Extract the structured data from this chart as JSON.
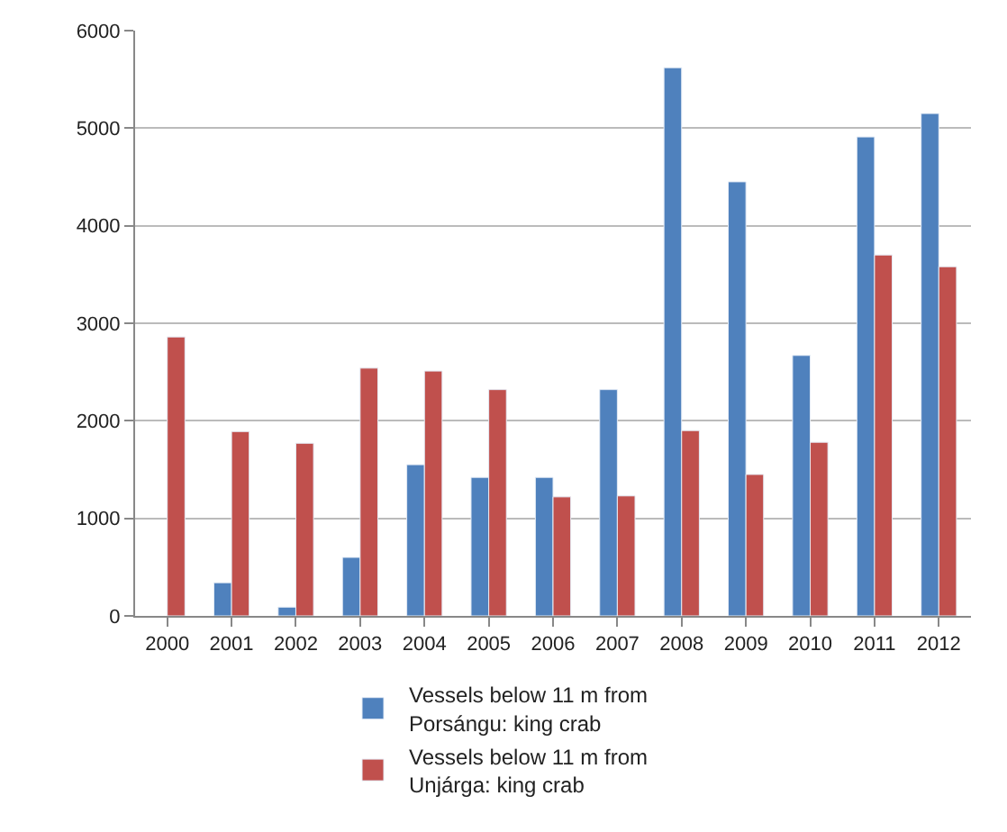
{
  "chart_data": {
    "type": "bar",
    "categories": [
      "2000",
      "2001",
      "2002",
      "2003",
      "2004",
      "2005",
      "2006",
      "2007",
      "2008",
      "2009",
      "2010",
      "2011",
      "2012"
    ],
    "series": [
      {
        "name": "Vessels below 11 m from Porsángu: king crab",
        "color": "#4f81bd",
        "values": [
          null,
          340,
          90,
          600,
          1550,
          1420,
          1420,
          2320,
          5620,
          4450,
          2670,
          4910,
          5150
        ]
      },
      {
        "name": "Vessels below 11 m from Unjárga: king crab",
        "color": "#c0504d",
        "values": [
          2860,
          1890,
          1770,
          2540,
          2510,
          2320,
          1220,
          1230,
          1900,
          1450,
          1780,
          3700,
          3580
        ]
      }
    ],
    "ylim": [
      0,
      6000
    ],
    "yticks": [
      0,
      1000,
      2000,
      3000,
      4000,
      5000,
      6000
    ],
    "grid": "y",
    "legend": "bottom"
  }
}
